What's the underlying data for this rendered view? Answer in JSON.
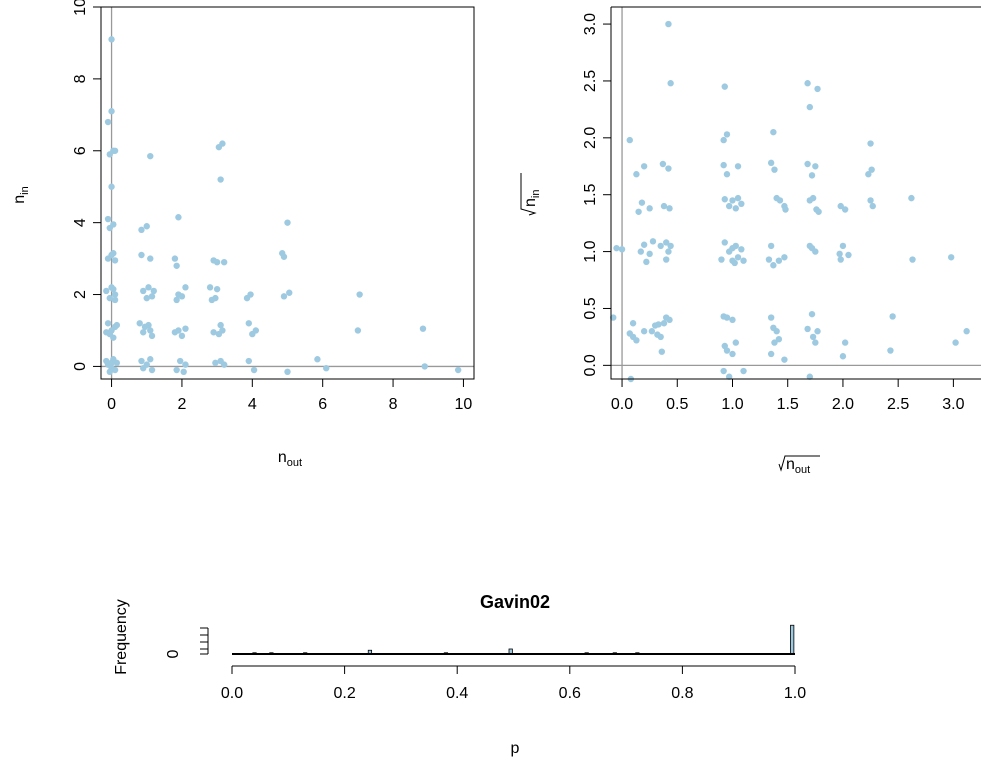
{
  "chart_data": [
    {
      "type": "scatter",
      "xlabel_main": "n",
      "xlabel_sub": "out",
      "ylabel_main": "n",
      "ylabel_sub": "in",
      "xlim": [
        -0.3,
        10.3
      ],
      "ylim": [
        -0.35,
        10.0
      ],
      "xticks": [
        "0",
        "2",
        "4",
        "6",
        "8",
        "10"
      ],
      "yticks": [
        "0",
        "2",
        "4",
        "6",
        "8",
        "10"
      ],
      "point_color": "#9ecae1",
      "points": [
        [
          0.0,
          9.1
        ],
        [
          -0.1,
          6.8
        ],
        [
          0.0,
          7.1
        ],
        [
          0.1,
          6.0
        ],
        [
          -0.05,
          5.9
        ],
        [
          0.05,
          6.0
        ],
        [
          0.0,
          5.0
        ],
        [
          -0.1,
          4.1
        ],
        [
          0.05,
          3.95
        ],
        [
          -0.05,
          3.85
        ],
        [
          0.0,
          3.1
        ],
        [
          0.1,
          2.95
        ],
        [
          -0.1,
          3.0
        ],
        [
          0.05,
          3.15
        ],
        [
          -0.15,
          2.1
        ],
        [
          0.0,
          2.2
        ],
        [
          0.1,
          2.0
        ],
        [
          -0.05,
          1.9
        ],
        [
          0.05,
          2.15
        ],
        [
          0.1,
          1.85
        ],
        [
          -0.1,
          1.2
        ],
        [
          0.0,
          1.0
        ],
        [
          0.1,
          1.1
        ],
        [
          -0.05,
          0.9
        ],
        [
          0.05,
          0.8
        ],
        [
          0.15,
          1.15
        ],
        [
          -0.15,
          0.95
        ],
        [
          0.0,
          0.1
        ],
        [
          0.1,
          -0.1
        ],
        [
          -0.1,
          0.05
        ],
        [
          0.05,
          0.2
        ],
        [
          -0.05,
          -0.15
        ],
        [
          0.15,
          0.1
        ],
        [
          -0.15,
          0.15
        ],
        [
          0.0,
          -0.05
        ],
        [
          1.1,
          5.85
        ],
        [
          1.0,
          3.9
        ],
        [
          0.85,
          3.8
        ],
        [
          0.85,
          3.1
        ],
        [
          1.1,
          3.0
        ],
        [
          0.9,
          2.1
        ],
        [
          1.05,
          2.2
        ],
        [
          1.15,
          1.95
        ],
        [
          1.0,
          1.9
        ],
        [
          1.2,
          2.1
        ],
        [
          0.8,
          1.2
        ],
        [
          0.95,
          1.1
        ],
        [
          1.1,
          1.0
        ],
        [
          1.15,
          0.85
        ],
        [
          0.9,
          0.95
        ],
        [
          1.05,
          1.15
        ],
        [
          0.85,
          0.15
        ],
        [
          1.0,
          0.05
        ],
        [
          1.15,
          -0.1
        ],
        [
          0.9,
          -0.05
        ],
        [
          1.1,
          0.2
        ],
        [
          1.9,
          4.15
        ],
        [
          1.8,
          3.0
        ],
        [
          1.85,
          2.8
        ],
        [
          2.1,
          2.2
        ],
        [
          1.9,
          2.0
        ],
        [
          2.0,
          1.95
        ],
        [
          1.85,
          1.85
        ],
        [
          1.9,
          1.0
        ],
        [
          2.1,
          1.05
        ],
        [
          1.8,
          0.95
        ],
        [
          2.0,
          0.85
        ],
        [
          1.95,
          0.15
        ],
        [
          2.1,
          0.05
        ],
        [
          1.85,
          -0.1
        ],
        [
          2.05,
          -0.15
        ],
        [
          3.15,
          6.2
        ],
        [
          3.05,
          6.1
        ],
        [
          3.1,
          5.2
        ],
        [
          2.9,
          2.95
        ],
        [
          3.0,
          2.9
        ],
        [
          3.2,
          2.9
        ],
        [
          2.8,
          2.2
        ],
        [
          3.0,
          2.15
        ],
        [
          2.95,
          1.9
        ],
        [
          2.85,
          1.85
        ],
        [
          3.1,
          1.15
        ],
        [
          2.9,
          0.95
        ],
        [
          3.05,
          0.9
        ],
        [
          3.15,
          1.0
        ],
        [
          2.95,
          0.1
        ],
        [
          3.1,
          0.15
        ],
        [
          3.2,
          0.05
        ],
        [
          3.95,
          2.0
        ],
        [
          3.85,
          1.9
        ],
        [
          3.9,
          1.2
        ],
        [
          4.1,
          1.0
        ],
        [
          4.0,
          0.9
        ],
        [
          3.9,
          0.15
        ],
        [
          4.05,
          -0.1
        ],
        [
          5.0,
          4.0
        ],
        [
          4.85,
          3.15
        ],
        [
          4.9,
          3.05
        ],
        [
          5.05,
          2.05
        ],
        [
          4.9,
          1.95
        ],
        [
          5.0,
          -0.15
        ],
        [
          5.85,
          0.2
        ],
        [
          6.1,
          -0.05
        ],
        [
          7.05,
          2.0
        ],
        [
          7.0,
          1.0
        ],
        [
          8.85,
          1.05
        ],
        [
          8.9,
          0.0
        ],
        [
          9.85,
          -0.1
        ]
      ]
    },
    {
      "type": "scatter",
      "xlabel_main": "n",
      "xlabel_sub": "out",
      "xlabel_sqrt": true,
      "ylabel_main": "n",
      "ylabel_sub": "in",
      "ylabel_sqrt": true,
      "xlim": [
        -0.1,
        3.25
      ],
      "ylim": [
        -0.12,
        3.15
      ],
      "xticks": [
        "0.0",
        "0.5",
        "1.0",
        "1.5",
        "2.0",
        "2.5",
        "3.0"
      ],
      "yticks": [
        "0.0",
        "0.5",
        "1.0",
        "1.5",
        "2.0",
        "2.5",
        "3.0"
      ],
      "point_color": "#9ecae1",
      "points": [
        [
          -0.05,
          1.03
        ],
        [
          0.0,
          1.02
        ],
        [
          -0.08,
          0.42
        ],
        [
          0.07,
          1.98
        ],
        [
          0.1,
          0.37
        ],
        [
          0.13,
          1.68
        ],
        [
          0.15,
          1.35
        ],
        [
          0.18,
          1.43
        ],
        [
          0.2,
          1.75
        ],
        [
          0.25,
          1.38
        ],
        [
          0.2,
          1.06
        ],
        [
          0.17,
          1.0
        ],
        [
          0.28,
          1.09
        ],
        [
          0.25,
          0.98
        ],
        [
          0.22,
          0.91
        ],
        [
          0.27,
          0.3
        ],
        [
          0.3,
          0.35
        ],
        [
          0.33,
          0.36
        ],
        [
          0.35,
          0.25
        ],
        [
          0.38,
          0.37
        ],
        [
          0.4,
          0.42
        ],
        [
          0.43,
          0.4
        ],
        [
          0.32,
          0.27
        ],
        [
          0.36,
          0.12
        ],
        [
          0.35,
          1.05
        ],
        [
          0.4,
          1.08
        ],
        [
          0.42,
          1.0
        ],
        [
          0.4,
          0.93
        ],
        [
          0.44,
          1.05
        ],
        [
          0.38,
          1.4
        ],
        [
          0.43,
          1.38
        ],
        [
          0.37,
          1.77
        ],
        [
          0.42,
          1.73
        ],
        [
          0.42,
          3.0
        ],
        [
          0.44,
          2.48
        ],
        [
          0.07,
          0.28
        ],
        [
          0.1,
          0.25
        ],
        [
          0.13,
          0.22
        ],
        [
          0.2,
          0.3
        ],
        [
          0.08,
          -0.12
        ],
        [
          0.93,
          2.45
        ],
        [
          0.95,
          2.03
        ],
        [
          0.92,
          1.98
        ],
        [
          0.92,
          1.76
        ],
        [
          0.95,
          1.68
        ],
        [
          0.93,
          1.46
        ],
        [
          0.97,
          1.4
        ],
        [
          1.0,
          1.45
        ],
        [
          1.03,
          1.38
        ],
        [
          1.05,
          1.47
        ],
        [
          1.08,
          1.42
        ],
        [
          0.93,
          1.08
        ],
        [
          0.97,
          1.0
        ],
        [
          1.0,
          0.92
        ],
        [
          1.03,
          1.05
        ],
        [
          1.05,
          0.95
        ],
        [
          1.08,
          1.02
        ],
        [
          0.9,
          0.93
        ],
        [
          1.0,
          1.03
        ],
        [
          1.02,
          0.9
        ],
        [
          1.1,
          0.92
        ],
        [
          0.92,
          0.43
        ],
        [
          0.95,
          0.42
        ],
        [
          1.0,
          0.4
        ],
        [
          1.05,
          1.75
        ],
        [
          0.93,
          0.17
        ],
        [
          0.95,
          0.13
        ],
        [
          1.0,
          0.1
        ],
        [
          1.03,
          0.2
        ],
        [
          0.92,
          -0.05
        ],
        [
          0.97,
          -0.1
        ],
        [
          1.1,
          -0.05
        ],
        [
          1.37,
          2.05
        ],
        [
          1.35,
          1.78
        ],
        [
          1.38,
          1.72
        ],
        [
          1.4,
          1.47
        ],
        [
          1.43,
          1.45
        ],
        [
          1.47,
          1.4
        ],
        [
          1.48,
          1.37
        ],
        [
          1.35,
          1.05
        ],
        [
          1.33,
          0.93
        ],
        [
          1.37,
          0.88
        ],
        [
          1.42,
          0.92
        ],
        [
          1.47,
          0.95
        ],
        [
          1.35,
          0.42
        ],
        [
          1.37,
          0.33
        ],
        [
          1.4,
          0.3
        ],
        [
          1.38,
          0.2
        ],
        [
          1.42,
          0.23
        ],
        [
          1.35,
          0.1
        ],
        [
          1.47,
          0.05
        ],
        [
          1.68,
          2.48
        ],
        [
          1.7,
          2.27
        ],
        [
          1.77,
          2.43
        ],
        [
          1.68,
          1.77
        ],
        [
          1.72,
          1.67
        ],
        [
          1.75,
          1.75
        ],
        [
          1.7,
          1.45
        ],
        [
          1.73,
          1.47
        ],
        [
          1.76,
          1.37
        ],
        [
          1.78,
          1.35
        ],
        [
          1.7,
          1.05
        ],
        [
          1.72,
          1.03
        ],
        [
          1.75,
          1.0
        ],
        [
          1.68,
          0.32
        ],
        [
          1.73,
          0.25
        ],
        [
          1.77,
          0.3
        ],
        [
          1.75,
          0.2
        ],
        [
          1.72,
          0.45
        ],
        [
          1.7,
          -0.1
        ],
        [
          1.98,
          1.4
        ],
        [
          2.02,
          1.37
        ],
        [
          1.97,
          0.98
        ],
        [
          2.0,
          1.05
        ],
        [
          2.05,
          0.97
        ],
        [
          1.98,
          0.93
        ],
        [
          2.02,
          0.2
        ],
        [
          2.0,
          0.08
        ],
        [
          2.25,
          1.95
        ],
        [
          2.23,
          1.68
        ],
        [
          2.26,
          1.72
        ],
        [
          2.25,
          1.45
        ],
        [
          2.27,
          1.4
        ],
        [
          2.45,
          0.43
        ],
        [
          2.43,
          0.13
        ],
        [
          2.62,
          1.47
        ],
        [
          2.63,
          0.93
        ],
        [
          2.98,
          0.95
        ],
        [
          3.02,
          0.2
        ],
        [
          3.12,
          0.3
        ]
      ]
    },
    {
      "type": "bar",
      "title": "Gavin02",
      "xlabel": "p",
      "ylabel": "Frequency",
      "xlim": [
        0.0,
        1.0
      ],
      "xticks": [
        "0.0",
        "0.2",
        "0.4",
        "0.6",
        "0.8",
        "1.0"
      ],
      "yticks": [
        "0"
      ],
      "bar_color": "#9ecae1",
      "bin_width": 0.01,
      "bars": [
        {
          "x": 0.04,
          "value": 1
        },
        {
          "x": 0.07,
          "value": 1
        },
        {
          "x": 0.13,
          "value": 1
        },
        {
          "x": 0.245,
          "value": 3
        },
        {
          "x": 0.38,
          "value": 1
        },
        {
          "x": 0.495,
          "value": 4
        },
        {
          "x": 0.63,
          "value": 1
        },
        {
          "x": 0.68,
          "value": 1
        },
        {
          "x": 0.72,
          "value": 1
        },
        {
          "x": 0.995,
          "value": 23
        }
      ]
    }
  ]
}
